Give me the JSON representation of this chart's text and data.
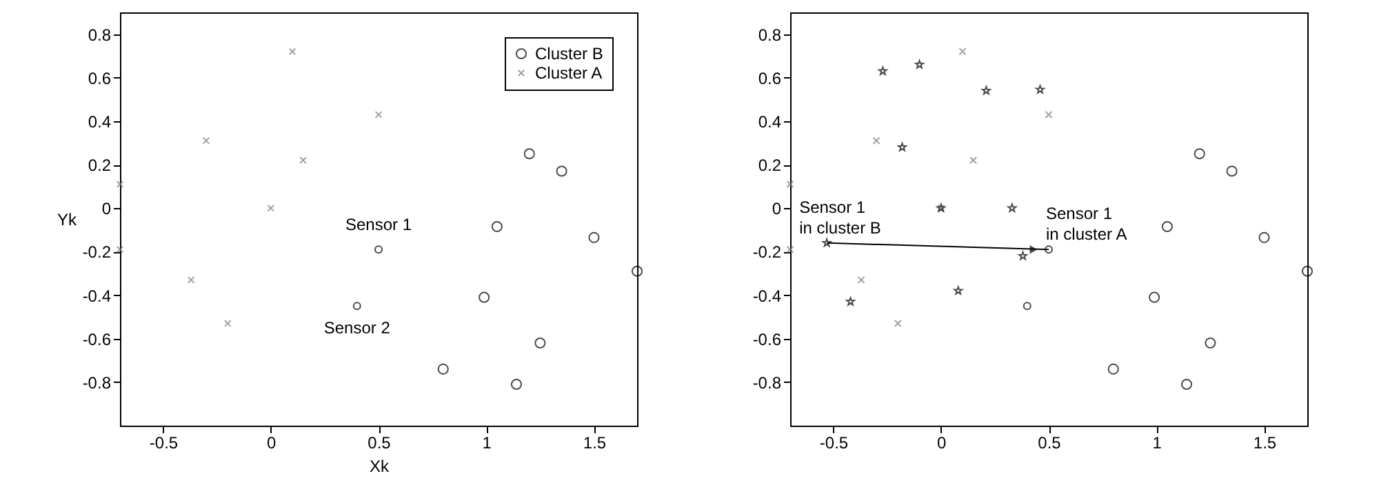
{
  "chart_data": [
    {
      "type": "scatter",
      "xlabel": "Xk",
      "ylabel": "Yk",
      "xlim": [
        -0.7,
        1.7
      ],
      "ylim": [
        -1,
        0.9
      ],
      "xticks": [
        -0.5,
        0,
        0.5,
        1,
        1.5
      ],
      "yticks": [
        -0.8,
        -0.6,
        -0.4,
        -0.2,
        0,
        0.2,
        0.4,
        0.6,
        0.8
      ],
      "grid": false,
      "legend": "top right",
      "series": [
        {
          "name": "Cluster B",
          "color": "#000000",
          "marker": "circle",
          "x": [
            1.2,
            1.35,
            1.05,
            1.5,
            1.7,
            0.99,
            1.25,
            0.8,
            1.14
          ],
          "values": [
            0.25,
            0.17,
            -0.085,
            -0.135,
            -0.29,
            -0.41,
            -0.62,
            -0.74,
            -0.81
          ]
        },
        {
          "name": "Cluster A",
          "color": "#777777",
          "marker": "cross",
          "x": [
            -0.7,
            -0.7,
            -0.3,
            0.1,
            0.15,
            0,
            0.5,
            -0.37,
            -0.2
          ],
          "values": [
            0.11,
            -0.19,
            0.31,
            0.72,
            0.22,
            0,
            0.43,
            -0.33,
            -0.53
          ]
        },
        {
          "color": "#000000",
          "marker": "circle",
          "x": [
            0.5,
            0.4
          ],
          "values": [
            -0.19,
            -0.45
          ]
        }
      ],
      "annotations": [
        {
          "text": "Sensor 1",
          "x": 0.5,
          "y": -0.19
        },
        {
          "text": "Sensor 2",
          "x": 0.4,
          "y": -0.45
        }
      ]
    },
    {
      "type": "scatter",
      "xlim": [
        -0.7,
        1.7
      ],
      "ylim": [
        -1,
        0.9
      ],
      "xticks": [
        -0.5,
        0,
        0.5,
        1,
        1.5
      ],
      "yticks": [
        -0.8,
        -0.6,
        -0.4,
        -0.2,
        0,
        0.2,
        0.4,
        0.6,
        0.8
      ],
      "grid": false,
      "series": [
        {
          "color": "#000000",
          "marker": "circle",
          "x": [
            1.2,
            1.35,
            1.05,
            1.5,
            1.7,
            0.99,
            1.25,
            0.8,
            1.14
          ],
          "values": [
            0.25,
            0.17,
            -0.085,
            -0.135,
            -0.29,
            -0.41,
            -0.62,
            -0.74,
            -0.81
          ]
        },
        {
          "color": "#777777",
          "marker": "cross",
          "x": [
            -0.7,
            -0.7,
            -0.3,
            0.1,
            0.15,
            0,
            0.5,
            -0.37,
            -0.2
          ],
          "values": [
            0.11,
            -0.19,
            0.31,
            0.72,
            0.22,
            0,
            0.43,
            -0.33,
            -0.53
          ]
        },
        {
          "color": "#000000",
          "marker": "star",
          "x": [
            -0.27,
            -0.1,
            0.21,
            0.46,
            -0.18,
            0,
            0.33,
            -0.53,
            0.38,
            -0.42,
            0.08
          ],
          "values": [
            0.63,
            0.66,
            0.54,
            0.545,
            0.28,
            0,
            0,
            -0.16,
            -0.22,
            -0.43,
            -0.38
          ]
        },
        {
          "color": "#000000",
          "marker": "circle",
          "x": [
            0.5,
            0.4
          ],
          "values": [
            -0.19,
            -0.45
          ]
        }
      ],
      "annotations": [
        {
          "text": "Sensor 1\nin cluster B",
          "x": -0.53,
          "y": -0.16
        },
        {
          "text": "Sensor 1\nin cluster A",
          "x": 0.5,
          "y": -0.19
        }
      ]
    }
  ]
}
